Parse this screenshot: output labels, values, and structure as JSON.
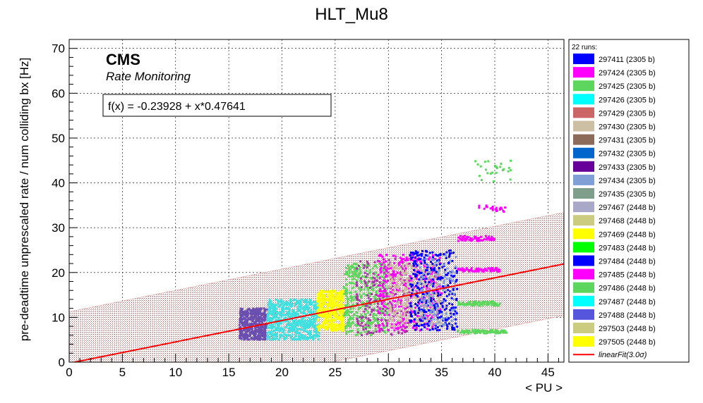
{
  "chart_data": {
    "type": "scatter",
    "title": "HLT_Mu8",
    "xlabel": "< PU >",
    "ylabel": "pre-deadtime unprescaled rate / num colliding bx [Hz]",
    "xlim": [
      0,
      46.5
    ],
    "ylim": [
      0,
      72
    ],
    "xticks": [
      0,
      5,
      10,
      15,
      20,
      25,
      30,
      35,
      40,
      45
    ],
    "yticks": [
      0,
      10,
      20,
      30,
      40,
      50,
      60,
      70
    ],
    "grid": true,
    "cms_label": "CMS",
    "cms_sublabel": "Rate Monitoring",
    "fit_formula": "f(x) = -0.23928 + x*0.47641",
    "fit": {
      "intercept": -0.23928,
      "slope": 0.47641,
      "band_sigma": 3.0,
      "band_halfwidth": 11.5,
      "color": "#ff0000"
    },
    "legend_header": "22 runs:",
    "legend_position": "right",
    "series": [
      {
        "name": "297411 (2305 b)",
        "color": "#0000ff"
      },
      {
        "name": "297424 (2305 b)",
        "color": "#ff00ff"
      },
      {
        "name": "297425 (2305 b)",
        "color": "#5cd65c"
      },
      {
        "name": "297426 (2305 b)",
        "color": "#00ffff"
      },
      {
        "name": "297429 (2305 b)",
        "color": "#cc6666"
      },
      {
        "name": "297430 (2305 b)",
        "color": "#ccbfa3"
      },
      {
        "name": "297431 (2305 b)",
        "color": "#8c6b5a"
      },
      {
        "name": "297432 (2305 b)",
        "color": "#0066cc"
      },
      {
        "name": "297433 (2305 b)",
        "color": "#660099"
      },
      {
        "name": "297434 (2305 b)",
        "color": "#7f9fd6"
      },
      {
        "name": "297435 (2305 b)",
        "color": "#7f9f8c"
      },
      {
        "name": "297467 (2448 b)",
        "color": "#aaa8c8"
      },
      {
        "name": "297468 (2448 b)",
        "color": "#cccc80"
      },
      {
        "name": "297469 (2448 b)",
        "color": "#ffff00"
      },
      {
        "name": "297483 (2448 b)",
        "color": "#00ff00"
      },
      {
        "name": "297484 (2448 b)",
        "color": "#0000ff"
      },
      {
        "name": "297485 (2448 b)",
        "color": "#ff00ff"
      },
      {
        "name": "297486 (2448 b)",
        "color": "#5cd65c"
      },
      {
        "name": "297487 (2448 b)",
        "color": "#00ffff"
      },
      {
        "name": "297488 (2448 b)",
        "color": "#5555dd"
      },
      {
        "name": "297503 (2448 b)",
        "color": "#cccc80"
      },
      {
        "name": "297505 (2448 b)",
        "color": "#ffff00"
      }
    ],
    "fit_legend_label": "linearFit(3.0σ)",
    "point_clusters": [
      {
        "x_range": [
          16,
          18.6
        ],
        "y_range": [
          5,
          12
        ],
        "color": "#6a4fb0",
        "count": 450
      },
      {
        "x_range": [
          18.6,
          23.5
        ],
        "y_range": [
          5,
          14
        ],
        "color": "#40e0e0",
        "count": 650
      },
      {
        "x_range": [
          23.3,
          25.8
        ],
        "y_range": [
          7,
          16
        ],
        "color": "#ffff00",
        "count": 420
      },
      {
        "x_range": [
          25.8,
          30
        ],
        "y_range": [
          6,
          22
        ],
        "color": "#5cd65c",
        "count": 420
      },
      {
        "x_range": [
          27,
          32
        ],
        "y_range": [
          6,
          23
        ],
        "color": "#aa33aa",
        "count": 220
      },
      {
        "x_range": [
          29,
          35
        ],
        "y_range": [
          7,
          24
        ],
        "color": "#ff00ff",
        "count": 400
      },
      {
        "x_range": [
          30,
          35
        ],
        "y_range": [
          8,
          22
        ],
        "color": "#ccbfa3",
        "count": 380
      },
      {
        "x_range": [
          32,
          36.5
        ],
        "y_range": [
          7,
          25
        ],
        "color": "#0000ff",
        "count": 320
      },
      {
        "x_range": [
          33,
          36.5
        ],
        "y_range": [
          8,
          24
        ],
        "color": "#7f9fd6",
        "count": 120
      },
      {
        "x_range": [
          36.5,
          40.5
        ],
        "y_range": [
          12.6,
          13.6
        ],
        "color": "#5cd65c",
        "count": 90
      },
      {
        "x_range": [
          36.5,
          40.5
        ],
        "y_range": [
          20.2,
          21
        ],
        "color": "#ff00ff",
        "count": 70
      },
      {
        "x_range": [
          36.5,
          40
        ],
        "y_range": [
          27,
          28.2
        ],
        "color": "#ff00ff",
        "count": 60
      },
      {
        "x_range": [
          36.5,
          41.2
        ],
        "y_range": [
          6.4,
          7.2
        ],
        "color": "#5cd65c",
        "count": 90
      },
      {
        "x_range": [
          38.5,
          41.5
        ],
        "y_range": [
          33.5,
          35
        ],
        "color": "#ff00ff",
        "count": 25
      },
      {
        "x_range": [
          38,
          41.5
        ],
        "y_range": [
          40,
          45
        ],
        "color": "#5cd65c",
        "count": 25
      }
    ]
  }
}
